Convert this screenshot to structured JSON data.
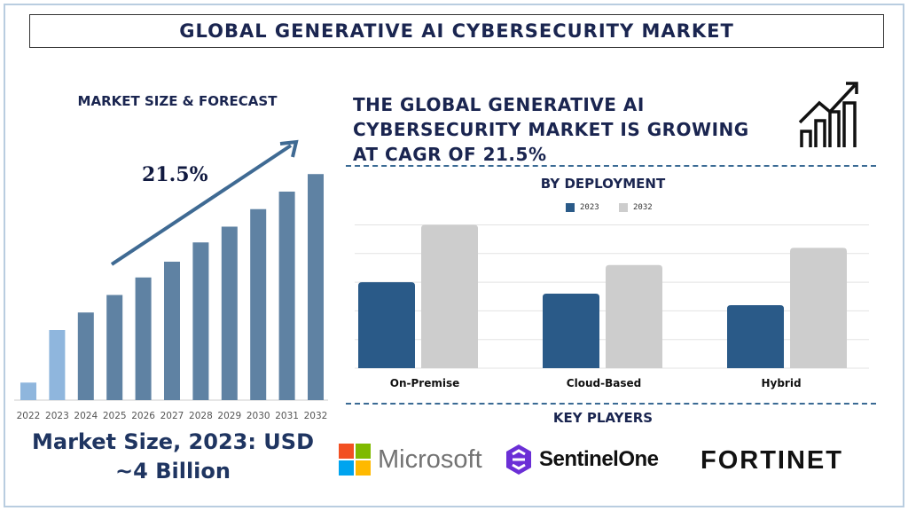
{
  "title": "GLOBAL GENERATIVE AI CYBERSECURITY MARKET",
  "left_panel": {
    "heading": "MARKET SIZE & FORECAST",
    "cagr_label": "21.5%",
    "market_size_line1": "Market Size, 2023: USD",
    "market_size_line2": "~4 Billion"
  },
  "headline": "THE GLOBAL GENERATIVE AI CYBERSECURITY MARKET IS GROWING AT CAGR OF 21.5%",
  "icon": "growth-chart-icon",
  "key_players_heading": "KEY PLAYERS",
  "key_players": [
    {
      "name": "Microsoft"
    },
    {
      "name": "SentinelOne"
    },
    {
      "name": "FORTINET"
    }
  ],
  "colors": {
    "title": "#1a2550",
    "forecast_bar": "#5f82a3",
    "historic_bar": "#8fb6dd",
    "dep_2023": "#2a5a88",
    "dep_2032": "#cdcdcd"
  },
  "chart_data": [
    {
      "type": "bar",
      "title": "MARKET SIZE & FORECAST",
      "categories": [
        "2022",
        "2023",
        "2024",
        "2025",
        "2026",
        "2027",
        "2028",
        "2029",
        "2030",
        "2031",
        "2032"
      ],
      "values": [
        1.0,
        4.0,
        5.0,
        6.0,
        7.0,
        7.9,
        9.0,
        9.9,
        10.9,
        11.9,
        12.9
      ],
      "historic_categories": [
        "2022",
        "2023"
      ],
      "annotation": "21.5%",
      "grid": false
    },
    {
      "type": "bar",
      "title": "BY DEPLOYMENT",
      "categories": [
        "On-Premise",
        "Cloud-Based",
        "Hybrid"
      ],
      "series": [
        {
          "name": "2023",
          "values": [
            3.0,
            2.6,
            2.2
          ]
        },
        {
          "name": "2032",
          "values": [
            5.0,
            3.6,
            4.2
          ]
        }
      ],
      "ylim": [
        0,
        5
      ],
      "grid": true,
      "legend": "top"
    }
  ]
}
